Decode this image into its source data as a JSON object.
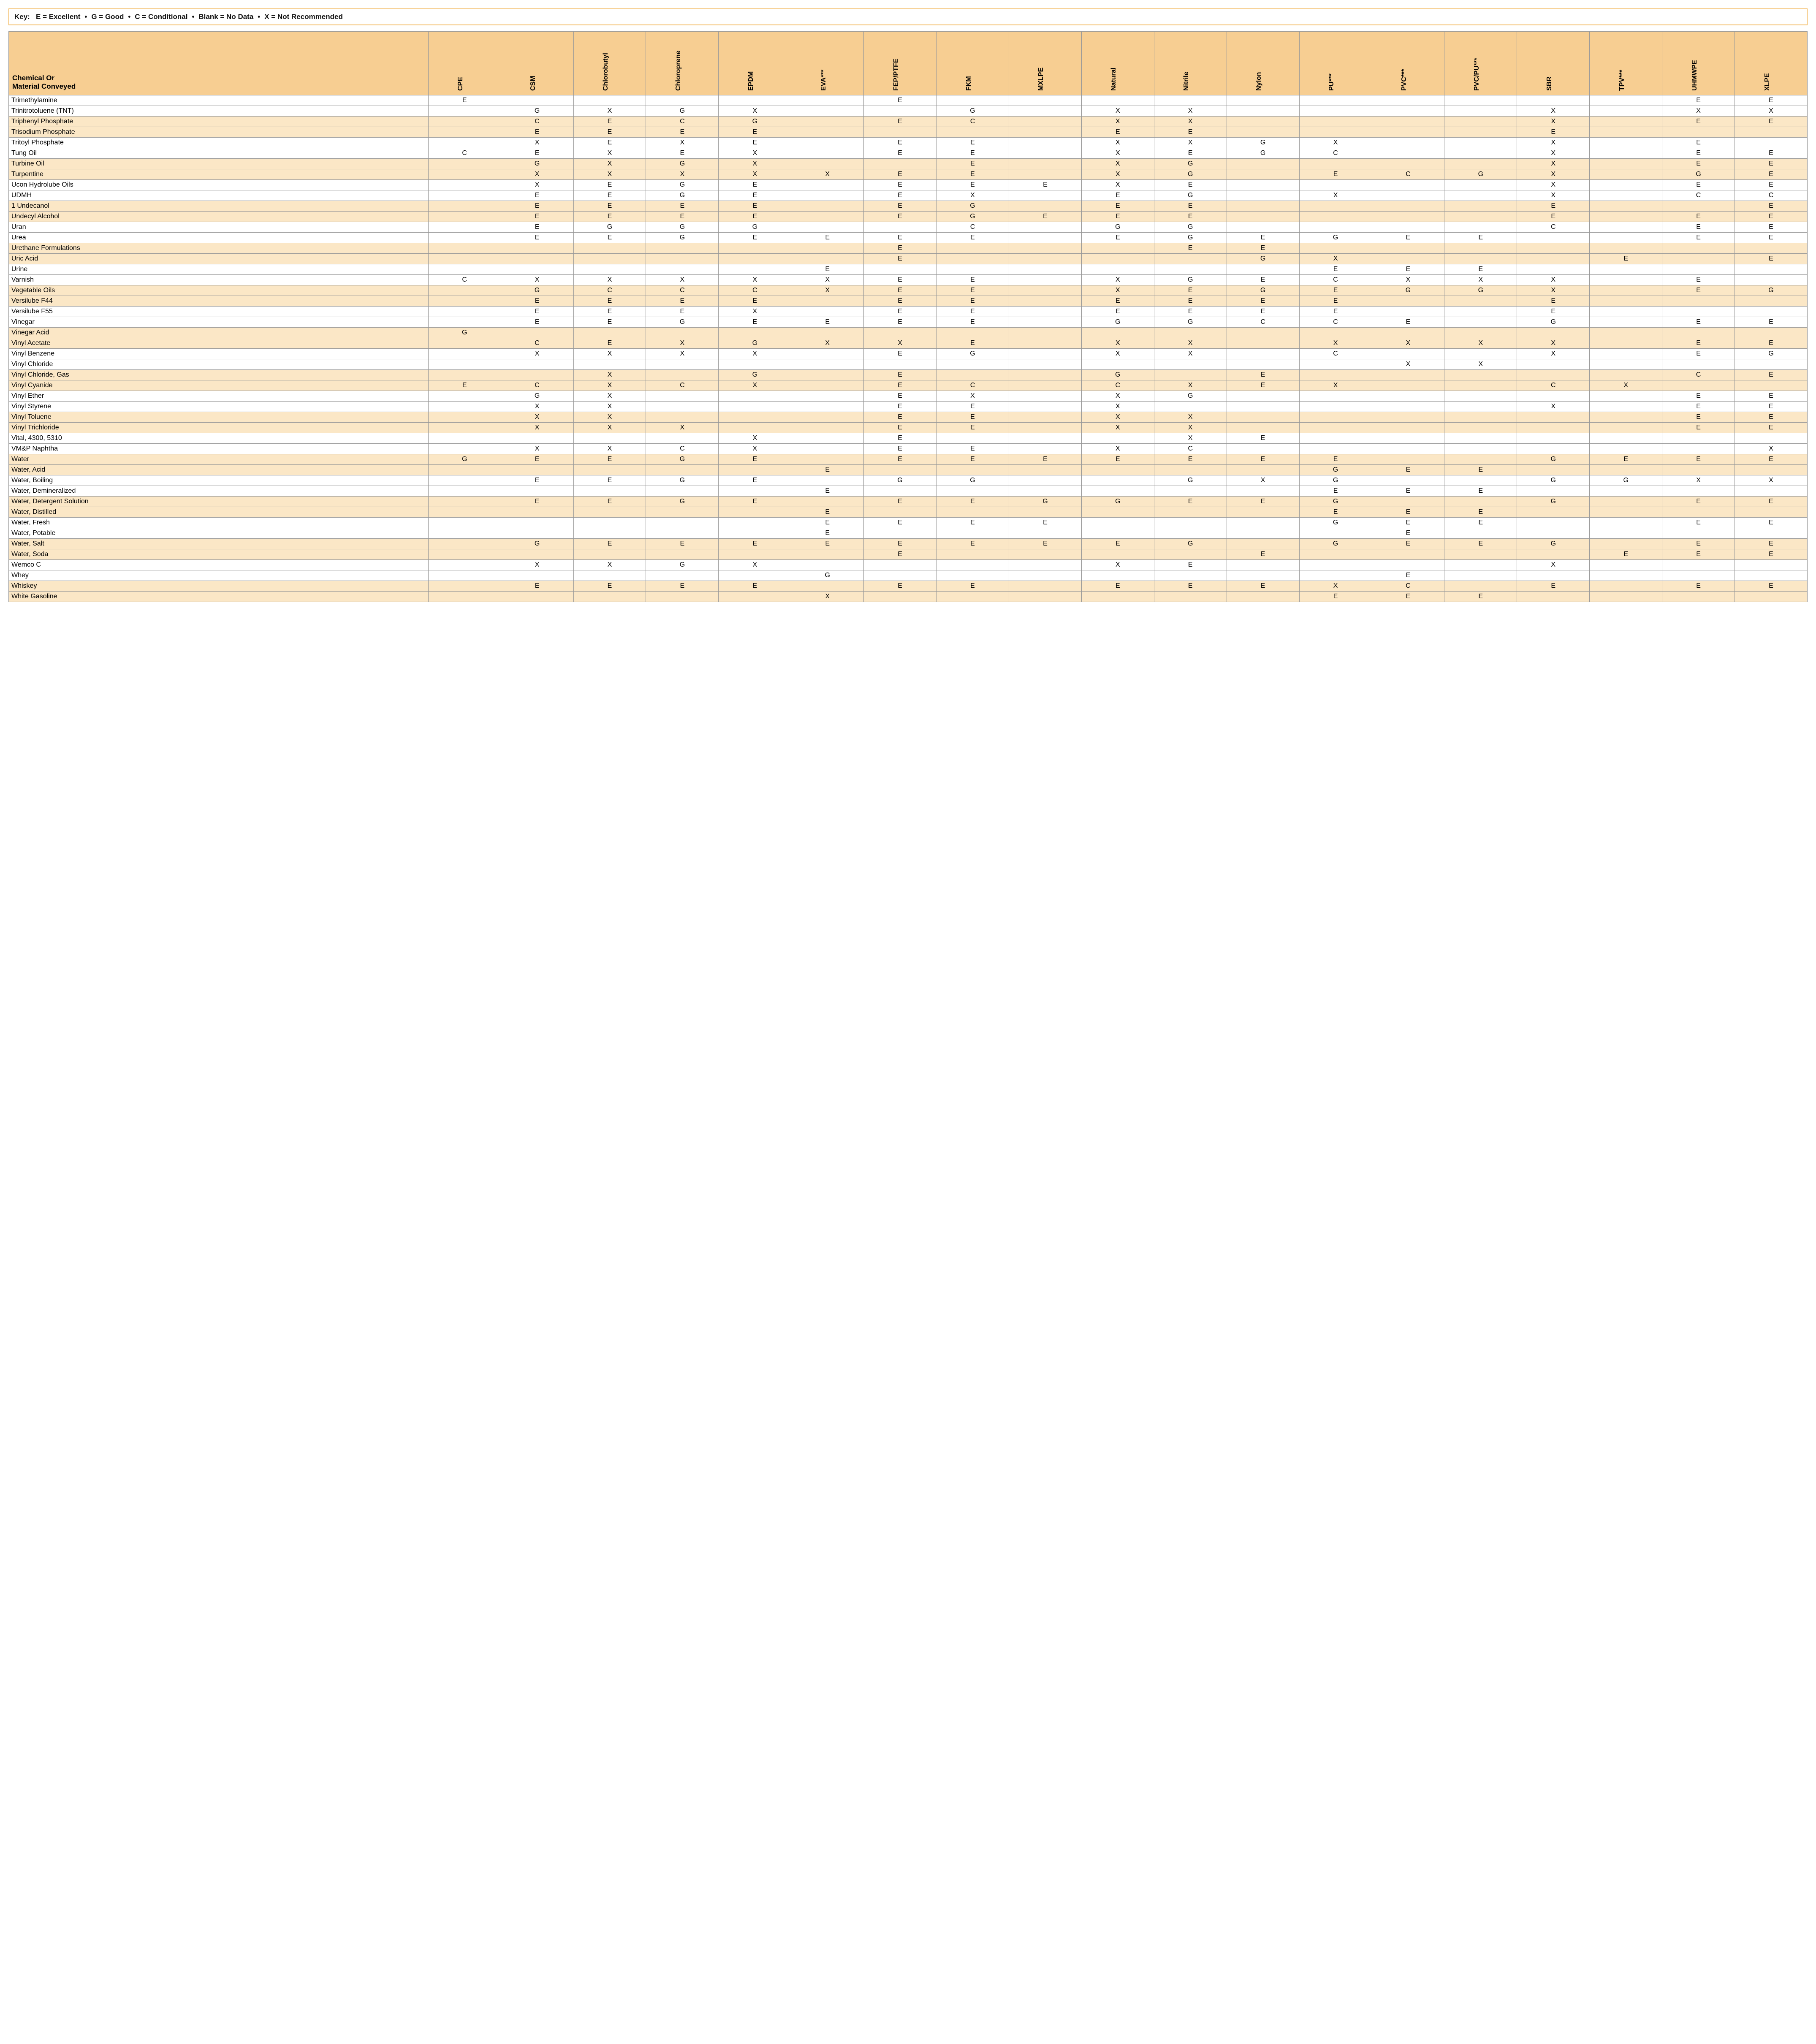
{
  "key": {
    "label": "Key:",
    "items": [
      "E = Excellent",
      "G = Good",
      "C = Conditional",
      "Blank = No Data",
      "X = Not Recommended"
    ]
  },
  "colors": {
    "header_bg": "#f7ce92",
    "stripe_a": "#ffffff",
    "stripe_b": "#fbe7c6",
    "border": "#999999",
    "key_border": "#f2b95f"
  },
  "row_header_title": "Chemical Or\nMaterial Conveyed",
  "columns": [
    "CPE",
    "CSM",
    "Chlorobutyl",
    "Chloroprene",
    "EPDM",
    "EVA***",
    "FEP/PTFE",
    "FKM",
    "MXLPE",
    "Natural",
    "Nitrile",
    "Nylon",
    "PU***",
    "PVC***",
    "PVC/PU***",
    "SBR",
    "TPV***",
    "UHMWPE",
    "XLPE"
  ],
  "rows": [
    {
      "name": "Trimethylamine",
      "v": [
        "E",
        "",
        "",
        "",
        "",
        "",
        "E",
        "",
        "",
        "",
        "",
        "",
        "",
        "",
        "",
        "",
        "",
        "E",
        "E"
      ]
    },
    {
      "name": "Trinitrotoluene (TNT)",
      "v": [
        "",
        "G",
        "X",
        "G",
        "X",
        "",
        "",
        "G",
        "",
        "X",
        "X",
        "",
        "",
        "",
        "",
        "X",
        "",
        "X",
        "X"
      ]
    },
    {
      "name": "Triphenyl Phosphate",
      "v": [
        "",
        "C",
        "E",
        "C",
        "G",
        "",
        "E",
        "C",
        "",
        "X",
        "X",
        "",
        "",
        "",
        "",
        "X",
        "",
        "E",
        "E"
      ]
    },
    {
      "name": "Trisodium Phosphate",
      "v": [
        "",
        "E",
        "E",
        "E",
        "E",
        "",
        "",
        "",
        "",
        "E",
        "E",
        "",
        "",
        "",
        "",
        "E",
        "",
        "",
        ""
      ]
    },
    {
      "name": "Tritoyl Phosphate",
      "v": [
        "",
        "X",
        "E",
        "X",
        "E",
        "",
        "E",
        "E",
        "",
        "X",
        "X",
        "G",
        "X",
        "",
        "",
        "X",
        "",
        "E",
        ""
      ]
    },
    {
      "name": "Tung Oil",
      "v": [
        "C",
        "E",
        "X",
        "E",
        "X",
        "",
        "E",
        "E",
        "",
        "X",
        "E",
        "G",
        "C",
        "",
        "",
        "X",
        "",
        "E",
        "E"
      ]
    },
    {
      "name": "Turbine Oil",
      "v": [
        "",
        "G",
        "X",
        "G",
        "X",
        "",
        "",
        "E",
        "",
        "X",
        "G",
        "",
        "",
        "",
        "",
        "X",
        "",
        "E",
        "E"
      ]
    },
    {
      "name": "Turpentine",
      "v": [
        "",
        "X",
        "X",
        "X",
        "X",
        "X",
        "E",
        "E",
        "",
        "X",
        "G",
        "",
        "E",
        "C",
        "G",
        "X",
        "",
        "G",
        "E"
      ]
    },
    {
      "name": "Ucon Hydrolube Oils",
      "v": [
        "",
        "X",
        "E",
        "G",
        "E",
        "",
        "E",
        "E",
        "E",
        "X",
        "E",
        "",
        "",
        "",
        "",
        "X",
        "",
        "E",
        "E"
      ]
    },
    {
      "name": "UDMH",
      "v": [
        "",
        "E",
        "E",
        "G",
        "E",
        "",
        "E",
        "X",
        "",
        "E",
        "G",
        "",
        "X",
        "",
        "",
        "X",
        "",
        "C",
        "C"
      ]
    },
    {
      "name": "1 Undecanol",
      "v": [
        "",
        "E",
        "E",
        "E",
        "E",
        "",
        "E",
        "G",
        "",
        "E",
        "E",
        "",
        "",
        "",
        "",
        "E",
        "",
        "",
        "E"
      ]
    },
    {
      "name": "Undecyl Alcohol",
      "v": [
        "",
        "E",
        "E",
        "E",
        "E",
        "",
        "E",
        "G",
        "E",
        "E",
        "E",
        "",
        "",
        "",
        "",
        "E",
        "",
        "E",
        "E"
      ]
    },
    {
      "name": "Uran",
      "v": [
        "",
        "E",
        "G",
        "G",
        "G",
        "",
        "",
        "C",
        "",
        "G",
        "G",
        "",
        "",
        "",
        "",
        "C",
        "",
        "E",
        "E"
      ]
    },
    {
      "name": "Urea",
      "v": [
        "",
        "E",
        "E",
        "G",
        "E",
        "E",
        "E",
        "E",
        "",
        "E",
        "G",
        "E",
        "G",
        "E",
        "E",
        "",
        "",
        "E",
        "E"
      ]
    },
    {
      "name": "Urethane Formulations",
      "v": [
        "",
        "",
        "",
        "",
        "",
        "",
        "E",
        "",
        "",
        "",
        "E",
        "E",
        "",
        "",
        "",
        "",
        "",
        "",
        ""
      ]
    },
    {
      "name": "Uric Acid",
      "v": [
        "",
        "",
        "",
        "",
        "",
        "",
        "E",
        "",
        "",
        "",
        "",
        "G",
        "X",
        "",
        "",
        "",
        "E",
        "",
        "E"
      ]
    },
    {
      "name": "Urine",
      "v": [
        "",
        "",
        "",
        "",
        "",
        "E",
        "",
        "",
        "",
        "",
        "",
        "",
        "E",
        "E",
        "E",
        "",
        "",
        "",
        ""
      ]
    },
    {
      "name": "Varnish",
      "v": [
        "C",
        "X",
        "X",
        "X",
        "X",
        "X",
        "E",
        "E",
        "",
        "X",
        "G",
        "E",
        "C",
        "X",
        "X",
        "X",
        "",
        "E",
        ""
      ]
    },
    {
      "name": "Vegetable Oils",
      "v": [
        "",
        "G",
        "C",
        "C",
        "C",
        "X",
        "E",
        "E",
        "",
        "X",
        "E",
        "G",
        "E",
        "G",
        "G",
        "X",
        "",
        "E",
        "G"
      ]
    },
    {
      "name": "Versilube F44",
      "v": [
        "",
        "E",
        "E",
        "E",
        "E",
        "",
        "E",
        "E",
        "",
        "E",
        "E",
        "E",
        "E",
        "",
        "",
        "E",
        "",
        "",
        ""
      ]
    },
    {
      "name": "Versilube F55",
      "v": [
        "",
        "E",
        "E",
        "E",
        "X",
        "",
        "E",
        "E",
        "",
        "E",
        "E",
        "E",
        "E",
        "",
        "",
        "E",
        "",
        "",
        ""
      ]
    },
    {
      "name": "Vinegar",
      "v": [
        "",
        "E",
        "E",
        "G",
        "E",
        "E",
        "E",
        "E",
        "",
        "G",
        "G",
        "C",
        "C",
        "E",
        "",
        "G",
        "",
        "E",
        "E"
      ]
    },
    {
      "name": "Vinegar Acid",
      "v": [
        "G",
        "",
        "",
        "",
        "",
        "",
        "",
        "",
        "",
        "",
        "",
        "",
        "",
        "",
        "",
        "",
        "",
        "",
        ""
      ]
    },
    {
      "name": "Vinyl Acetate",
      "v": [
        "",
        "C",
        "E",
        "X",
        "G",
        "X",
        "X",
        "E",
        "",
        "X",
        "X",
        "",
        "X",
        "X",
        "X",
        "X",
        "",
        "E",
        "E"
      ]
    },
    {
      "name": "Vinyl Benzene",
      "v": [
        "",
        "X",
        "X",
        "X",
        "X",
        "",
        "E",
        "G",
        "",
        "X",
        "X",
        "",
        "C",
        "",
        "",
        "X",
        "",
        "E",
        "G"
      ]
    },
    {
      "name": "Vinyl Chloride",
      "v": [
        "",
        "",
        "",
        "",
        "",
        "",
        "",
        "",
        "",
        "",
        "",
        "",
        "",
        "X",
        "X",
        "",
        "",
        "",
        ""
      ]
    },
    {
      "name": "Vinyl Chloride, Gas",
      "v": [
        "",
        "",
        "X",
        "",
        "G",
        "",
        "E",
        "",
        "",
        "G",
        "",
        "E",
        "",
        "",
        "",
        "",
        "",
        "C",
        "E"
      ]
    },
    {
      "name": "Vinyl Cyanide",
      "v": [
        "E",
        "C",
        "X",
        "C",
        "X",
        "",
        "E",
        "C",
        "",
        "C",
        "X",
        "E",
        "X",
        "",
        "",
        "C",
        "X",
        "",
        ""
      ]
    },
    {
      "name": "Vinyl Ether",
      "v": [
        "",
        "G",
        "X",
        "",
        "",
        "",
        "E",
        "X",
        "",
        "X",
        "G",
        "",
        "",
        "",
        "",
        "",
        "",
        "E",
        "E"
      ]
    },
    {
      "name": "Vinyl Styrene",
      "v": [
        "",
        "X",
        "X",
        "",
        "",
        "",
        "E",
        "E",
        "",
        "X",
        "",
        "",
        "",
        "",
        "",
        "X",
        "",
        "E",
        "E"
      ]
    },
    {
      "name": "Vinyl Toluene",
      "v": [
        "",
        "X",
        "X",
        "",
        "",
        "",
        "E",
        "E",
        "",
        "X",
        "X",
        "",
        "",
        "",
        "",
        "",
        "",
        "E",
        "E"
      ]
    },
    {
      "name": "Vinyl Trichloride",
      "v": [
        "",
        "X",
        "X",
        "X",
        "",
        "",
        "E",
        "E",
        "",
        "X",
        "X",
        "",
        "",
        "",
        "",
        "",
        "",
        "E",
        "E"
      ]
    },
    {
      "name": "Vital, 4300, 5310",
      "v": [
        "",
        "",
        "",
        "",
        "X",
        "",
        "E",
        "",
        "",
        "",
        "X",
        "E",
        "",
        "",
        "",
        "",
        "",
        "",
        ""
      ]
    },
    {
      "name": "VM&P Naphtha",
      "v": [
        "",
        "X",
        "X",
        "C",
        "X",
        "",
        "E",
        "E",
        "",
        "X",
        "C",
        "",
        "",
        "",
        "",
        "",
        "",
        "",
        "X"
      ]
    },
    {
      "name": "Water",
      "v": [
        "G",
        "E",
        "E",
        "G",
        "E",
        "",
        "E",
        "E",
        "E",
        "E",
        "E",
        "E",
        "E",
        "",
        "",
        "G",
        "E",
        "E",
        "E"
      ]
    },
    {
      "name": "Water, Acid",
      "v": [
        "",
        "",
        "",
        "",
        "",
        "E",
        "",
        "",
        "",
        "",
        "",
        "",
        "G",
        "E",
        "E",
        "",
        "",
        "",
        ""
      ]
    },
    {
      "name": "Water, Boiling",
      "v": [
        "",
        "E",
        "E",
        "G",
        "E",
        "",
        "G",
        "G",
        "",
        "",
        "G",
        "X",
        "G",
        "",
        "",
        "G",
        "G",
        "X",
        "X"
      ]
    },
    {
      "name": "Water, Demineralized",
      "v": [
        "",
        "",
        "",
        "",
        "",
        "E",
        "",
        "",
        "",
        "",
        "",
        "",
        "E",
        "E",
        "E",
        "",
        "",
        "",
        ""
      ]
    },
    {
      "name": "Water, Detergent Solution",
      "v": [
        "",
        "E",
        "E",
        "G",
        "E",
        "",
        "E",
        "E",
        "G",
        "G",
        "E",
        "E",
        "G",
        "",
        "",
        "G",
        "",
        "E",
        "E"
      ]
    },
    {
      "name": "Water, Distilled",
      "v": [
        "",
        "",
        "",
        "",
        "",
        "E",
        "",
        "",
        "",
        "",
        "",
        "",
        "E",
        "E",
        "E",
        "",
        "",
        "",
        ""
      ]
    },
    {
      "name": "Water, Fresh",
      "v": [
        "",
        "",
        "",
        "",
        "",
        "E",
        "E",
        "E",
        "E",
        "",
        "",
        "",
        "G",
        "E",
        "E",
        "",
        "",
        "E",
        "E"
      ]
    },
    {
      "name": "Water, Potable",
      "v": [
        "",
        "",
        "",
        "",
        "",
        "E",
        "",
        "",
        "",
        "",
        "",
        "",
        "",
        "E",
        "",
        "",
        "",
        "",
        ""
      ]
    },
    {
      "name": "Water, Salt",
      "v": [
        "",
        "G",
        "E",
        "E",
        "E",
        "E",
        "E",
        "E",
        "E",
        "E",
        "G",
        "",
        "G",
        "E",
        "E",
        "G",
        "",
        "E",
        "E"
      ]
    },
    {
      "name": "Water, Soda",
      "v": [
        "",
        "",
        "",
        "",
        "",
        "",
        "E",
        "",
        "",
        "",
        "",
        "E",
        "",
        "",
        "",
        "",
        "E",
        "E",
        "E"
      ]
    },
    {
      "name": "Wemco C",
      "v": [
        "",
        "X",
        "X",
        "G",
        "X",
        "",
        "",
        "",
        "",
        "X",
        "E",
        "",
        "",
        "",
        "",
        "X",
        "",
        "",
        ""
      ]
    },
    {
      "name": "Whey",
      "v": [
        "",
        "",
        "",
        "",
        "",
        "G",
        "",
        "",
        "",
        "",
        "",
        "",
        "",
        "E",
        "",
        "",
        "",
        "",
        ""
      ]
    },
    {
      "name": "Whiskey",
      "v": [
        "",
        "E",
        "E",
        "E",
        "E",
        "",
        "E",
        "E",
        "",
        "E",
        "E",
        "E",
        "X",
        "C",
        "",
        "E",
        "",
        "E",
        "E"
      ]
    },
    {
      "name": "White Gasoline",
      "v": [
        "",
        "",
        "",
        "",
        "",
        "X",
        "",
        "",
        "",
        "",
        "",
        "",
        "E",
        "E",
        "E",
        "",
        "",
        "",
        ""
      ]
    }
  ]
}
